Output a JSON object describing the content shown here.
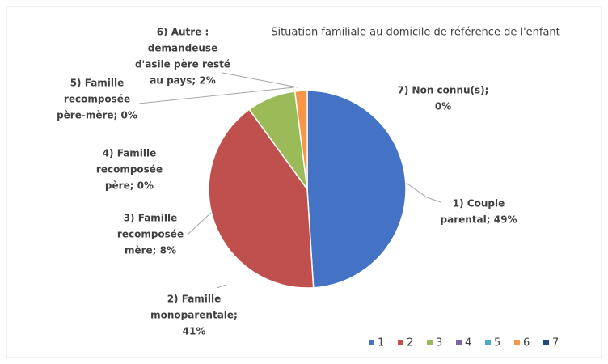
{
  "chart_data": {
    "type": "pie",
    "title": "Situation familiale au domicile de référence de l'enfant",
    "categories": [
      "1",
      "2",
      "3",
      "4",
      "5",
      "6",
      "7"
    ],
    "values": [
      49,
      41,
      8,
      0,
      0,
      2,
      0
    ],
    "value_labels": [
      [
        "1) Couple",
        "parental; 49%"
      ],
      [
        "2) Famille",
        "monoparentale;",
        "41%"
      ],
      [
        "3) Famille",
        "recomposée",
        "mère; 8%"
      ],
      [
        "4) Famille",
        "recomposée",
        "père; 0%"
      ],
      [
        "5) Famille",
        "recomposée",
        "père-mère; 0%"
      ],
      [
        "6) Autre :",
        "demandeuse",
        "d'asile père resté",
        "au pays; 2%"
      ],
      [
        "7) Non connu(s);",
        "0%"
      ]
    ],
    "colors": [
      "#4472c4",
      "#c0504d",
      "#9bbb59",
      "#8064a2",
      "#4bacc6",
      "#f79646",
      "#1f497d"
    ],
    "legend": "bottom-right"
  }
}
